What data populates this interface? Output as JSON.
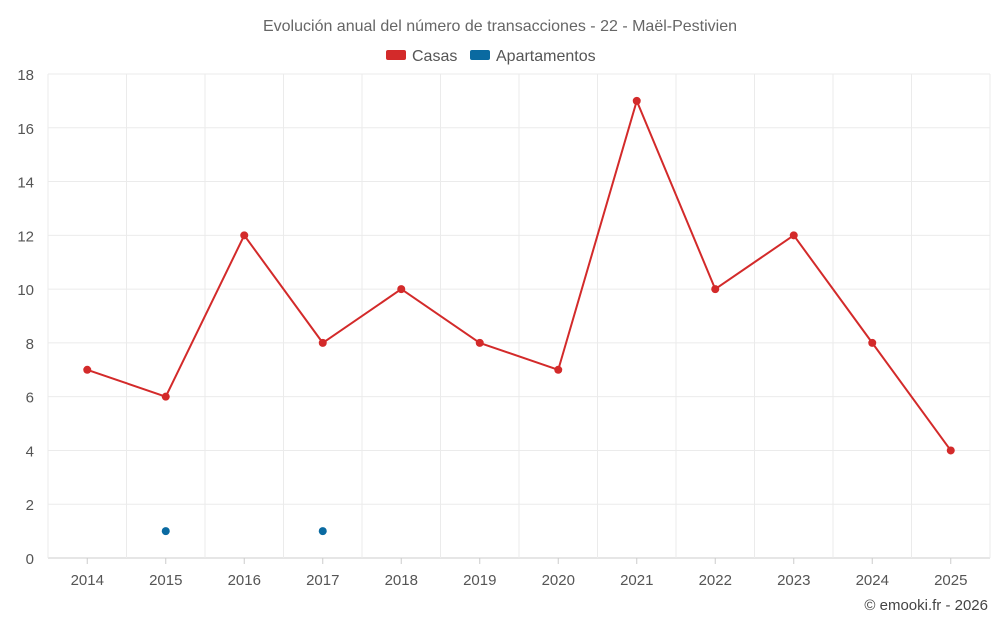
{
  "chart_data": {
    "type": "line",
    "title": "Evolución anual del número de transacciones - 22 - Maël-Pestivien",
    "categories": [
      "2014",
      "2015",
      "2016",
      "2017",
      "2018",
      "2019",
      "2020",
      "2021",
      "2022",
      "2023",
      "2024",
      "2025"
    ],
    "series": [
      {
        "name": "Casas",
        "color": "#d32a2a",
        "values": [
          7,
          6,
          12,
          8,
          10,
          8,
          7,
          17,
          10,
          12,
          8,
          4
        ]
      },
      {
        "name": "Apartamentos",
        "color": "#0a6aa1",
        "values": [
          null,
          1,
          null,
          1,
          null,
          null,
          null,
          null,
          null,
          null,
          null,
          null
        ]
      }
    ],
    "ylim": [
      0,
      18
    ],
    "yticks": [
      0,
      2,
      4,
      6,
      8,
      10,
      12,
      14,
      16,
      18
    ],
    "grid": true,
    "legend": "top-center",
    "xlabel": "",
    "ylabel": ""
  },
  "credit": "© emooki.fr - 2026"
}
